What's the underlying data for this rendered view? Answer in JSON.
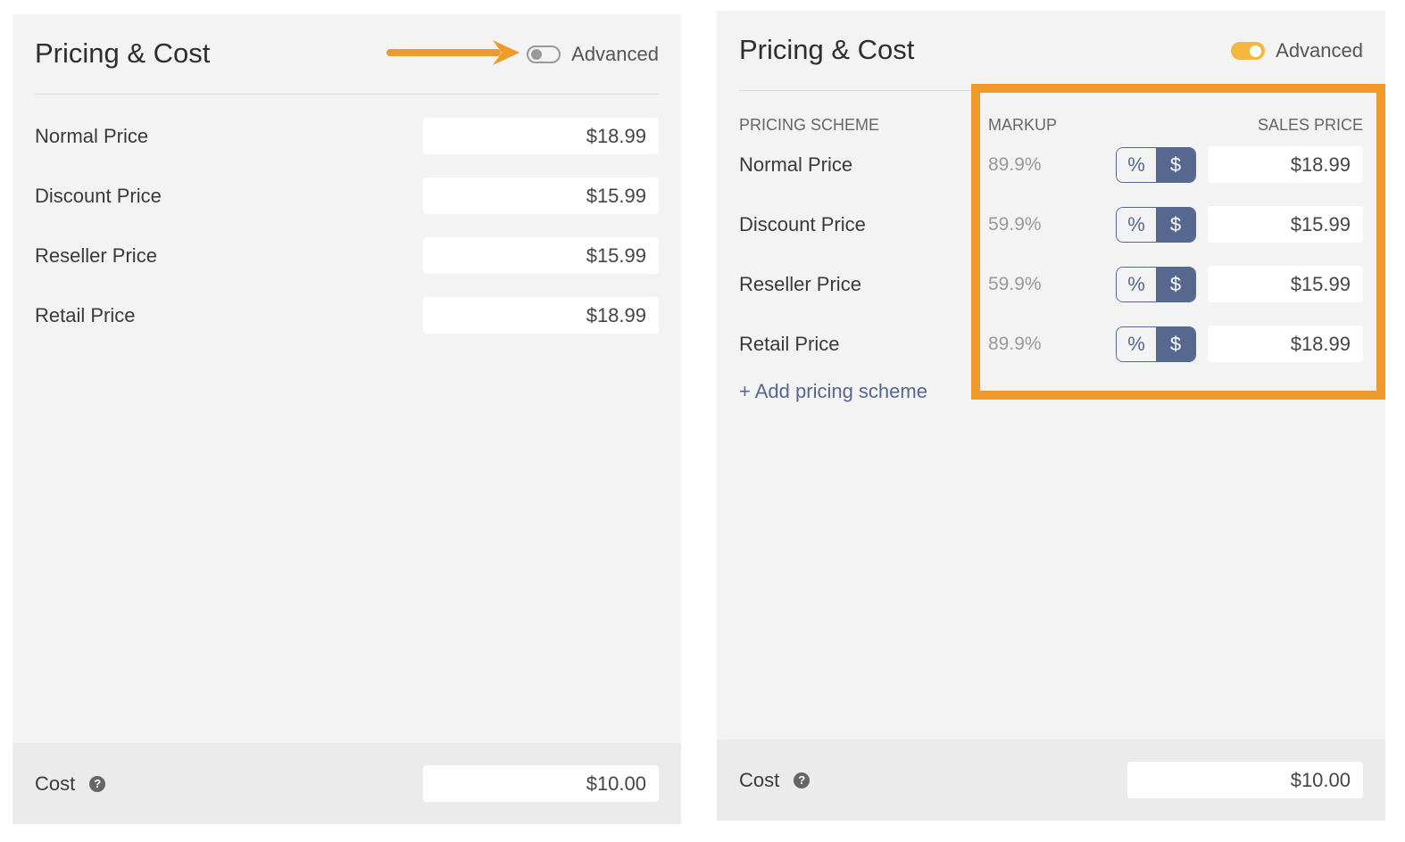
{
  "left_panel": {
    "title": "Pricing & Cost",
    "advanced_label": "Advanced",
    "advanced_on": false,
    "rows": [
      {
        "label": "Normal Price",
        "value": "$18.99"
      },
      {
        "label": "Discount Price",
        "value": "$15.99"
      },
      {
        "label": "Reseller Price",
        "value": "$15.99"
      },
      {
        "label": "Retail Price",
        "value": "$18.99"
      }
    ],
    "cost": {
      "label": "Cost",
      "value": "$10.00"
    }
  },
  "right_panel": {
    "title": "Pricing & Cost",
    "advanced_label": "Advanced",
    "advanced_on": true,
    "headers": {
      "scheme": "PRICING SCHEME",
      "markup": "MARKUP",
      "sales": "SALES PRICE"
    },
    "rows": [
      {
        "label": "Normal Price",
        "markup": "89.9%",
        "value": "$18.99"
      },
      {
        "label": "Discount Price",
        "markup": "59.9%",
        "value": "$15.99"
      },
      {
        "label": "Reseller Price",
        "markup": "59.9%",
        "value": "$15.99"
      },
      {
        "label": "Retail Price",
        "markup": "89.9%",
        "value": "$18.99"
      }
    ],
    "toggle": {
      "percent": "%",
      "dollar": "$",
      "selected": "$"
    },
    "add_label": "+ Add pricing scheme",
    "cost": {
      "label": "Cost",
      "value": "$10.00"
    }
  },
  "colors": {
    "accent": "#ef9a2a",
    "toggle_on": "#f5b63c",
    "segment": "#56688f"
  }
}
